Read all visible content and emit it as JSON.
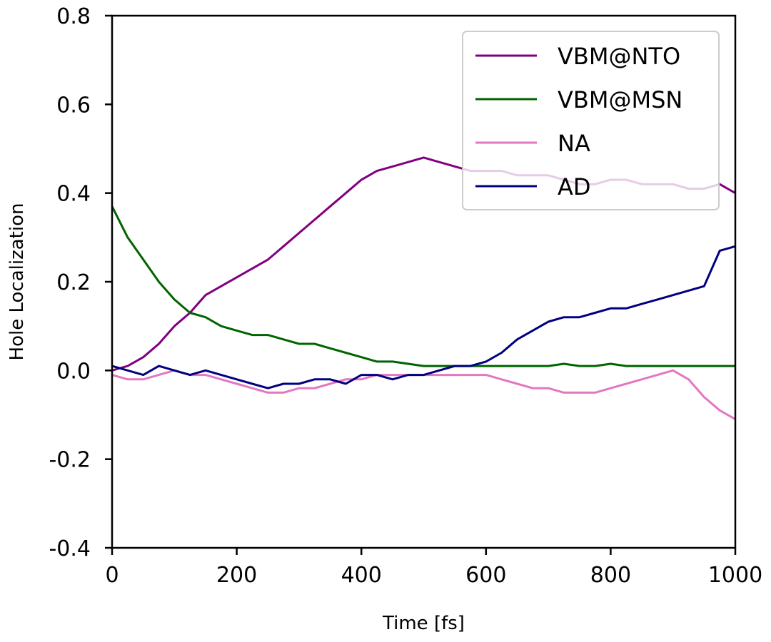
{
  "chart_data": {
    "type": "line",
    "title": "",
    "xlabel": "Time [fs]",
    "ylabel": "Hole Localization",
    "xlim": [
      0,
      1000
    ],
    "ylim": [
      -0.4,
      0.8
    ],
    "x_ticks": [
      "0",
      "200",
      "400",
      "600",
      "800",
      "1000"
    ],
    "y_ticks": [
      "-0.4",
      "-0.2",
      "0.0",
      "0.2",
      "0.4",
      "0.6",
      "0.8"
    ],
    "grid": false,
    "legend_position": "top-right",
    "series": [
      {
        "name": "VBM@NTO",
        "color": "#800080",
        "x": [
          0,
          25,
          50,
          75,
          100,
          125,
          150,
          175,
          200,
          225,
          250,
          275,
          300,
          325,
          350,
          375,
          400,
          425,
          450,
          475,
          500,
          525,
          550,
          575,
          600,
          625,
          650,
          675,
          700,
          725,
          750,
          775,
          800,
          825,
          850,
          875,
          900,
          925,
          950,
          975,
          1000
        ],
        "y": [
          0.0,
          0.01,
          0.03,
          0.06,
          0.1,
          0.13,
          0.17,
          0.19,
          0.21,
          0.23,
          0.25,
          0.28,
          0.31,
          0.34,
          0.37,
          0.4,
          0.43,
          0.45,
          0.46,
          0.47,
          0.48,
          0.47,
          0.46,
          0.45,
          0.45,
          0.45,
          0.44,
          0.44,
          0.44,
          0.43,
          0.42,
          0.42,
          0.43,
          0.43,
          0.42,
          0.42,
          0.42,
          0.41,
          0.41,
          0.42,
          0.4
        ]
      },
      {
        "name": "VBM@MSN",
        "color": "#006400",
        "x": [
          0,
          25,
          50,
          75,
          100,
          125,
          150,
          175,
          200,
          225,
          250,
          275,
          300,
          325,
          350,
          375,
          400,
          425,
          450,
          475,
          500,
          525,
          550,
          575,
          600,
          625,
          650,
          675,
          700,
          725,
          750,
          775,
          800,
          825,
          850,
          875,
          900,
          925,
          950,
          975,
          1000
        ],
        "y": [
          0.37,
          0.3,
          0.25,
          0.2,
          0.16,
          0.13,
          0.12,
          0.1,
          0.09,
          0.08,
          0.08,
          0.07,
          0.06,
          0.06,
          0.05,
          0.04,
          0.03,
          0.02,
          0.02,
          0.015,
          0.01,
          0.01,
          0.01,
          0.01,
          0.01,
          0.01,
          0.01,
          0.01,
          0.01,
          0.015,
          0.01,
          0.01,
          0.015,
          0.01,
          0.01,
          0.01,
          0.01,
          0.01,
          0.01,
          0.01,
          0.01
        ]
      },
      {
        "name": "NA",
        "color": "#e377c2",
        "x": [
          0,
          25,
          50,
          75,
          100,
          125,
          150,
          175,
          200,
          225,
          250,
          275,
          300,
          325,
          350,
          375,
          400,
          425,
          450,
          475,
          500,
          525,
          550,
          575,
          600,
          625,
          650,
          675,
          700,
          725,
          750,
          775,
          800,
          825,
          850,
          875,
          900,
          925,
          950,
          975,
          1000
        ],
        "y": [
          -0.01,
          -0.02,
          -0.02,
          -0.01,
          0.0,
          -0.01,
          -0.01,
          -0.02,
          -0.03,
          -0.04,
          -0.05,
          -0.05,
          -0.04,
          -0.04,
          -0.03,
          -0.02,
          -0.02,
          -0.01,
          -0.01,
          -0.01,
          -0.01,
          -0.01,
          -0.01,
          -0.01,
          -0.01,
          -0.02,
          -0.03,
          -0.04,
          -0.04,
          -0.05,
          -0.05,
          -0.05,
          -0.04,
          -0.03,
          -0.02,
          -0.01,
          0.0,
          -0.02,
          -0.06,
          -0.09,
          -0.11
        ]
      },
      {
        "name": "AD",
        "color": "#000080",
        "x": [
          0,
          25,
          50,
          75,
          100,
          125,
          150,
          175,
          200,
          225,
          250,
          275,
          300,
          325,
          350,
          375,
          400,
          425,
          450,
          475,
          500,
          525,
          550,
          575,
          600,
          625,
          650,
          675,
          700,
          725,
          750,
          775,
          800,
          825,
          850,
          875,
          900,
          925,
          950,
          975,
          1000
        ],
        "y": [
          0.01,
          0.0,
          -0.01,
          0.01,
          0.0,
          -0.01,
          0.0,
          -0.01,
          -0.02,
          -0.03,
          -0.04,
          -0.03,
          -0.03,
          -0.02,
          -0.02,
          -0.03,
          -0.01,
          -0.01,
          -0.02,
          -0.01,
          -0.01,
          0.0,
          0.01,
          0.01,
          0.02,
          0.04,
          0.07,
          0.09,
          0.11,
          0.12,
          0.12,
          0.13,
          0.14,
          0.14,
          0.15,
          0.16,
          0.17,
          0.18,
          0.19,
          0.27,
          0.28
        ]
      }
    ]
  }
}
